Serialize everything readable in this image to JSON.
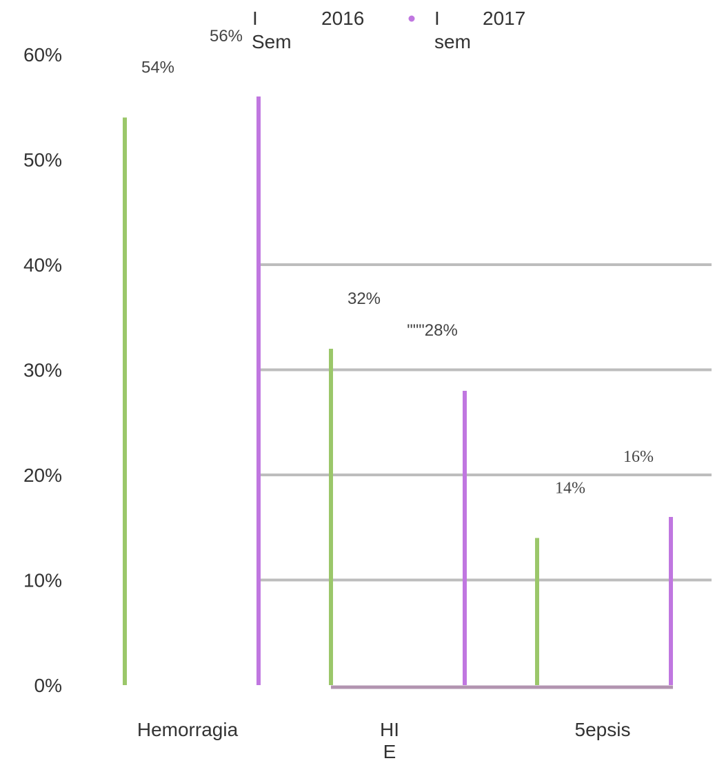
{
  "chart_data": {
    "type": "bar",
    "categories": [
      "Hemorragia",
      "HI E",
      "5epsis"
    ],
    "series": [
      {
        "name": "I Sem 2016",
        "values": [
          54,
          32,
          14
        ],
        "color": "#9bc76a"
      },
      {
        "name": "I sem 2017",
        "values": [
          56,
          28,
          16
        ],
        "color": "#c077e0"
      }
    ],
    "data_labels": [
      [
        "54%",
        "32%",
        "14%"
      ],
      [
        "56%",
        "\"\"\"28%",
        "16%"
      ]
    ],
    "y_ticks": [
      "0%",
      "10%",
      "20%",
      "30%",
      "40%",
      "50%",
      "60%"
    ],
    "ylim": [
      0,
      60
    ],
    "grid": true,
    "legend_position": "top-center",
    "title": "",
    "xlabel": "",
    "ylabel": ""
  },
  "legend": {
    "items": [
      {
        "line1": "I",
        "line2": "Sem",
        "year": "2016"
      },
      {
        "line1": "I",
        "line2": "sem",
        "year": "2017"
      }
    ]
  },
  "category_label_lines": [
    [
      "Hemorragia"
    ],
    [
      "HI",
      "E"
    ],
    [
      "5epsis"
    ]
  ]
}
